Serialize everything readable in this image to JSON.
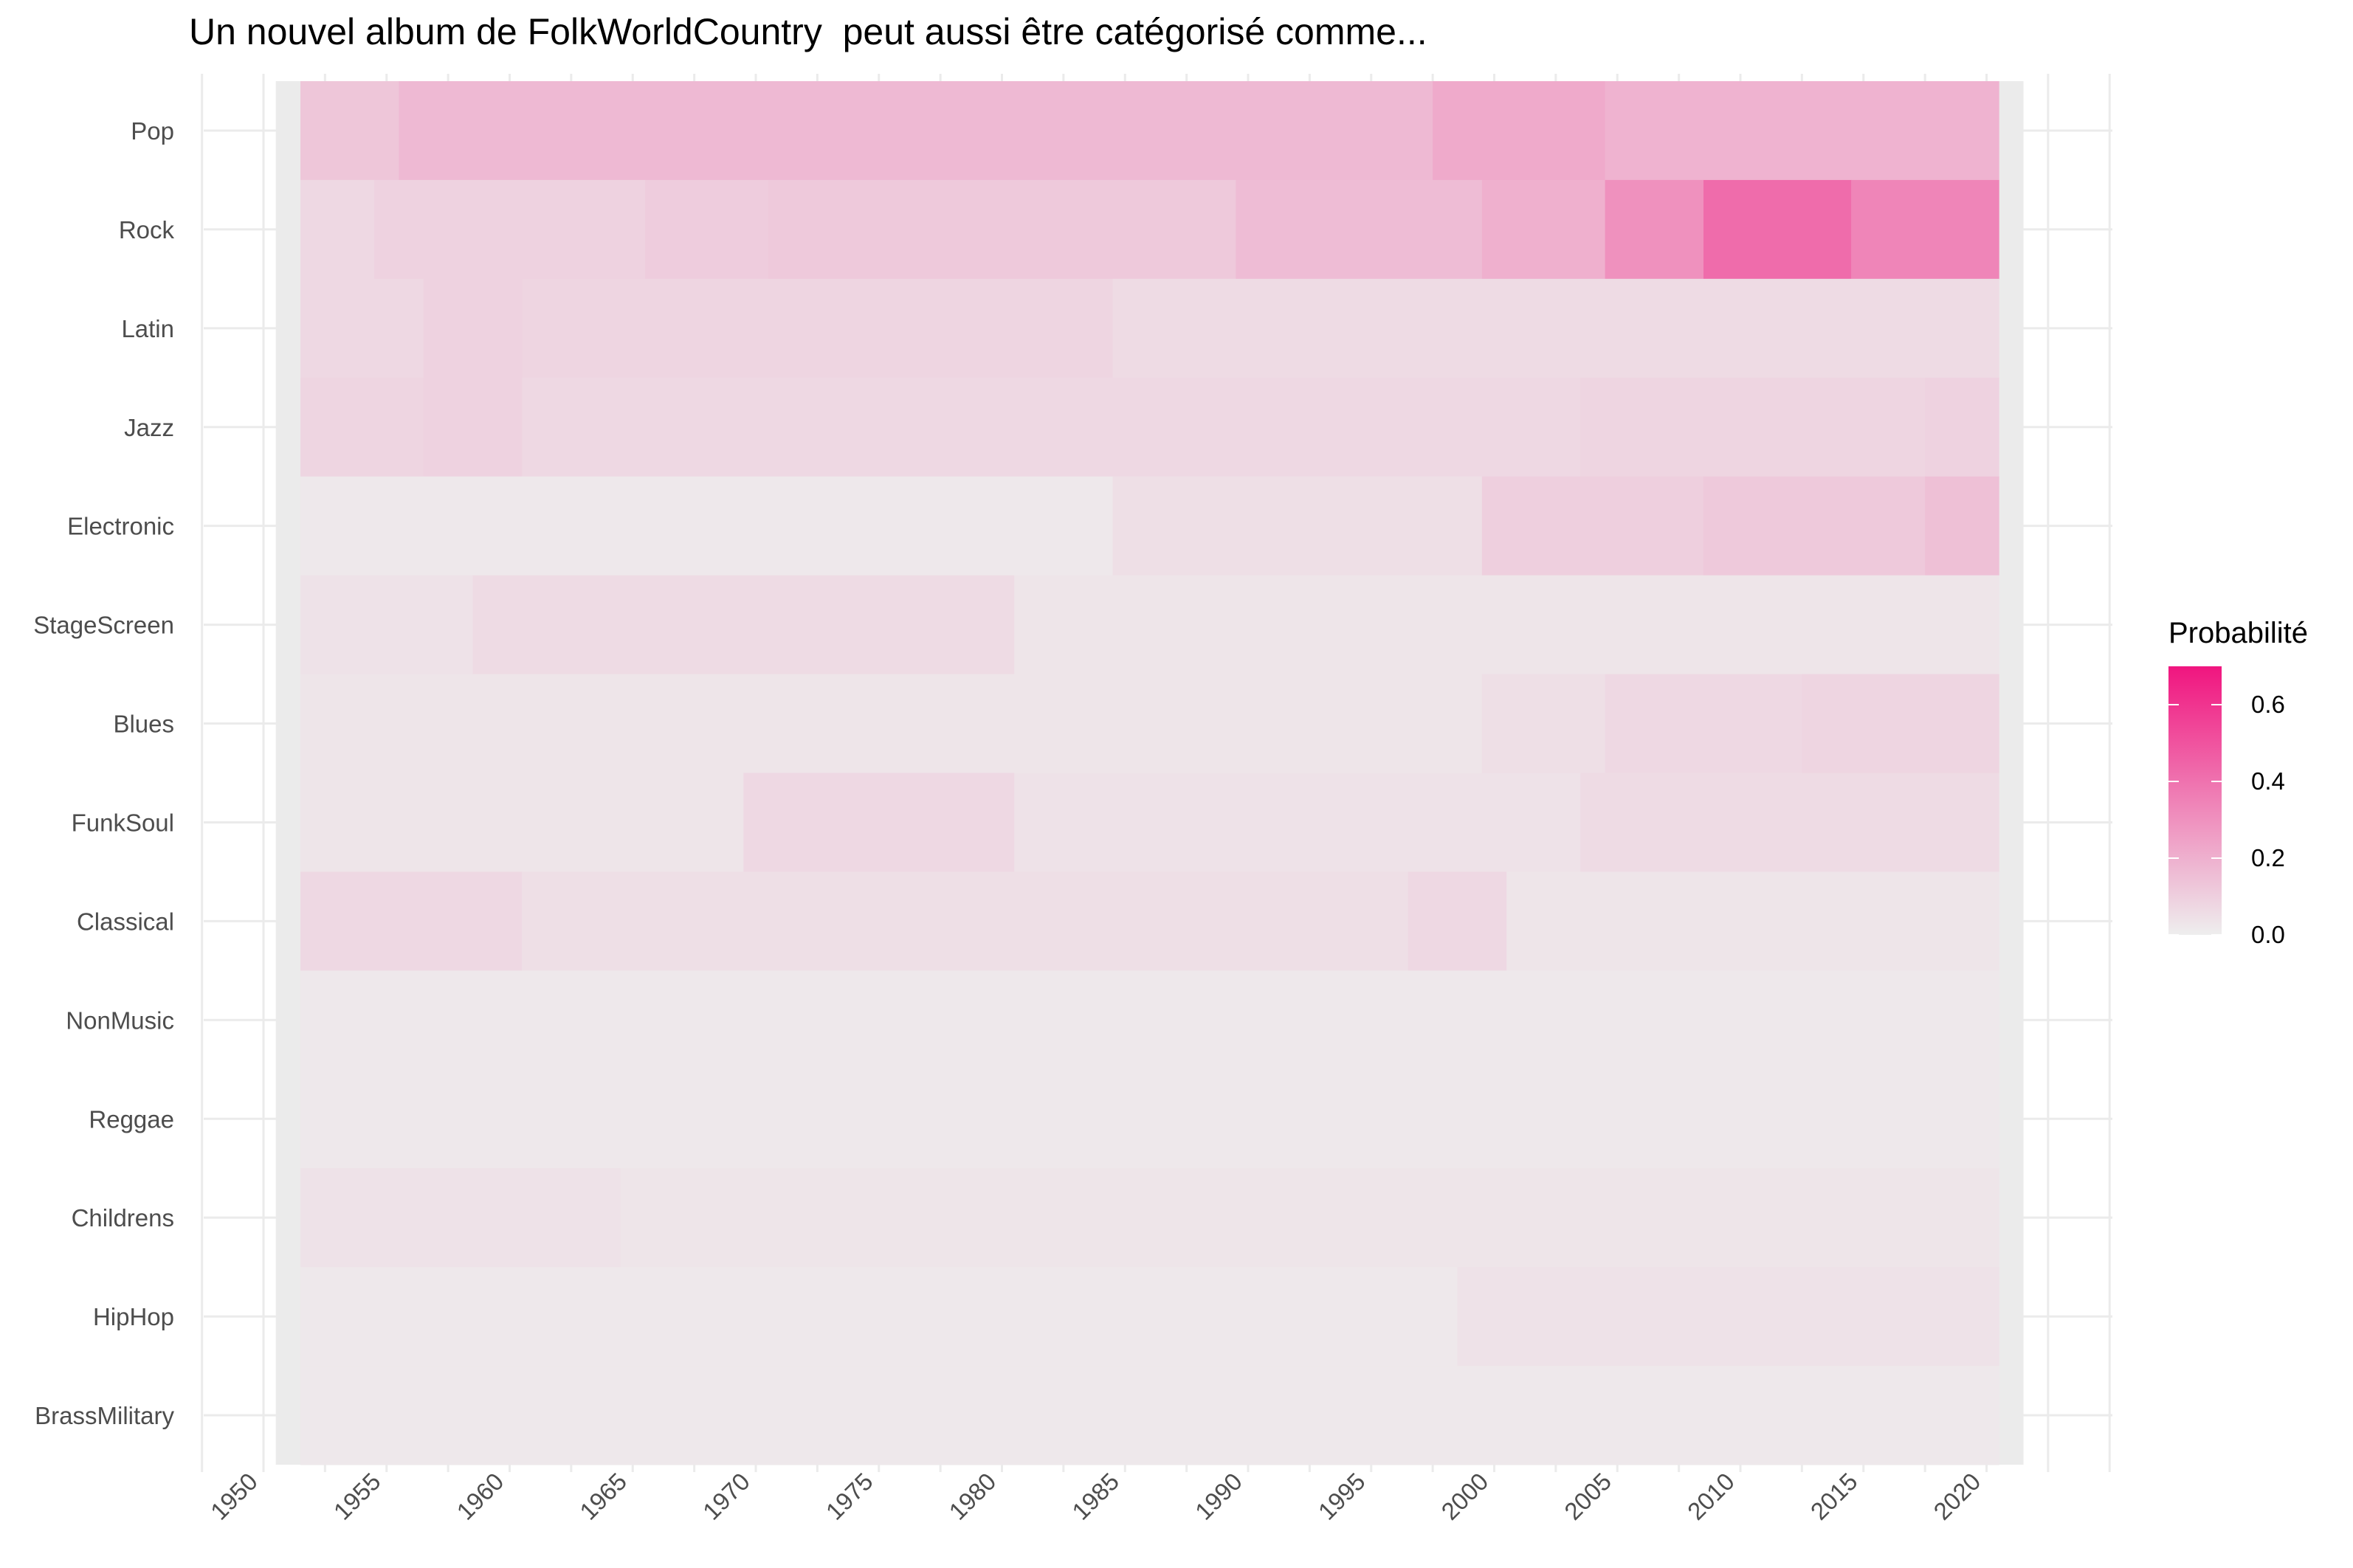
{
  "chart_data": {
    "type": "heatmap",
    "title": "Un nouvel album de FolkWorldCountry  peut aussi être catégorisé comme...",
    "xlabel": "",
    "ylabel": "",
    "x_ticks": [
      1950,
      1955,
      1960,
      1965,
      1970,
      1975,
      1980,
      1985,
      1990,
      1995,
      2000,
      2005,
      2010,
      2015,
      2020
    ],
    "xlim": [
      1950,
      2021
    ],
    "categories": [
      "Pop",
      "Rock",
      "Latin",
      "Jazz",
      "Electronic",
      "StageScreen",
      "Blues",
      "FunkSoul",
      "Classical",
      "NonMusic",
      "Reggae",
      "Childrens",
      "HipHop",
      "BrassMilitary"
    ],
    "color_scale": {
      "title": "Probabilité",
      "low_color": "#eeeeee",
      "high_color": "#f0157f",
      "range": [
        0,
        0.7
      ],
      "ticks": [
        "0.0",
        "0.2",
        "0.4",
        "0.6"
      ]
    },
    "grid": true,
    "legend_position": "right",
    "background_color": "#ebebeb",
    "series": [
      {
        "name": "Pop",
        "segments": [
          {
            "from": 1952,
            "to": 1956,
            "value": 0.13
          },
          {
            "from": 1956,
            "to": 1998,
            "value": 0.17
          },
          {
            "from": 1998,
            "to": 2005,
            "value": 0.22
          },
          {
            "from": 2005,
            "to": 2021,
            "value": 0.19
          }
        ]
      },
      {
        "name": "Rock",
        "segments": [
          {
            "from": 1952,
            "to": 1955,
            "value": 0.07
          },
          {
            "from": 1955,
            "to": 1966,
            "value": 0.09
          },
          {
            "from": 1966,
            "to": 1971,
            "value": 0.11
          },
          {
            "from": 1971,
            "to": 1990,
            "value": 0.12
          },
          {
            "from": 1990,
            "to": 2000,
            "value": 0.16
          },
          {
            "from": 2000,
            "to": 2005,
            "value": 0.2
          },
          {
            "from": 2005,
            "to": 2009,
            "value": 0.3
          },
          {
            "from": 2009,
            "to": 2015,
            "value": 0.42
          },
          {
            "from": 2015,
            "to": 2021,
            "value": 0.34
          }
        ]
      },
      {
        "name": "Latin",
        "segments": [
          {
            "from": 1952,
            "to": 1957,
            "value": 0.07
          },
          {
            "from": 1957,
            "to": 1961,
            "value": 0.09
          },
          {
            "from": 1961,
            "to": 1985,
            "value": 0.08
          },
          {
            "from": 1985,
            "to": 2021,
            "value": 0.06
          }
        ]
      },
      {
        "name": "Jazz",
        "segments": [
          {
            "from": 1952,
            "to": 1957,
            "value": 0.08
          },
          {
            "from": 1957,
            "to": 1961,
            "value": 0.09
          },
          {
            "from": 1961,
            "to": 2004,
            "value": 0.07
          },
          {
            "from": 2004,
            "to": 2018,
            "value": 0.08
          },
          {
            "from": 2018,
            "to": 2021,
            "value": 0.09
          }
        ]
      },
      {
        "name": "Electronic",
        "segments": [
          {
            "from": 1952,
            "to": 1985,
            "value": 0.02
          },
          {
            "from": 1985,
            "to": 2000,
            "value": 0.05
          },
          {
            "from": 2000,
            "to": 2009,
            "value": 0.1
          },
          {
            "from": 2009,
            "to": 2018,
            "value": 0.12
          },
          {
            "from": 2018,
            "to": 2021,
            "value": 0.15
          }
        ]
      },
      {
        "name": "StageScreen",
        "segments": [
          {
            "from": 1952,
            "to": 1959,
            "value": 0.04
          },
          {
            "from": 1959,
            "to": 1981,
            "value": 0.06
          },
          {
            "from": 1981,
            "to": 2021,
            "value": 0.03
          }
        ]
      },
      {
        "name": "Blues",
        "segments": [
          {
            "from": 1952,
            "to": 2000,
            "value": 0.03
          },
          {
            "from": 2000,
            "to": 2005,
            "value": 0.05
          },
          {
            "from": 2005,
            "to": 2013,
            "value": 0.07
          },
          {
            "from": 2013,
            "to": 2021,
            "value": 0.08
          }
        ]
      },
      {
        "name": "FunkSoul",
        "segments": [
          {
            "from": 1952,
            "to": 1970,
            "value": 0.03
          },
          {
            "from": 1970,
            "to": 1981,
            "value": 0.07
          },
          {
            "from": 1981,
            "to": 2004,
            "value": 0.04
          },
          {
            "from": 2004,
            "to": 2021,
            "value": 0.06
          }
        ]
      },
      {
        "name": "Classical",
        "segments": [
          {
            "from": 1952,
            "to": 1961,
            "value": 0.07
          },
          {
            "from": 1961,
            "to": 1997,
            "value": 0.05
          },
          {
            "from": 1997,
            "to": 2001,
            "value": 0.07
          },
          {
            "from": 2001,
            "to": 2021,
            "value": 0.03
          }
        ]
      },
      {
        "name": "NonMusic",
        "segments": [
          {
            "from": 1952,
            "to": 2021,
            "value": 0.02
          }
        ]
      },
      {
        "name": "Reggae",
        "segments": [
          {
            "from": 1952,
            "to": 2021,
            "value": 0.02
          }
        ]
      },
      {
        "name": "Childrens",
        "segments": [
          {
            "from": 1952,
            "to": 1965,
            "value": 0.04
          },
          {
            "from": 1965,
            "to": 2021,
            "value": 0.03
          }
        ]
      },
      {
        "name": "HipHop",
        "segments": [
          {
            "from": 1952,
            "to": 1999,
            "value": 0.02
          },
          {
            "from": 1999,
            "to": 2021,
            "value": 0.04
          }
        ]
      },
      {
        "name": "BrassMilitary",
        "segments": [
          {
            "from": 1952,
            "to": 2021,
            "value": 0.02
          }
        ]
      }
    ]
  }
}
